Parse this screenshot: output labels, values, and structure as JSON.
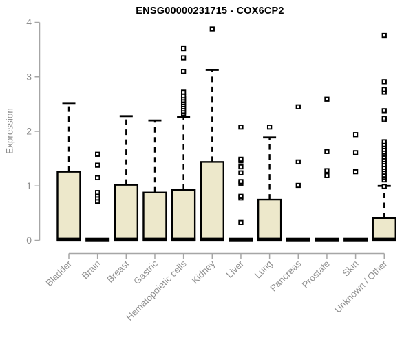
{
  "header": {
    "title": "ENSG00000231715 - COX6CP2"
  },
  "colors": {
    "background": "#FFFFFF",
    "title_text": "#000000",
    "axis_line": "#A6A6A6",
    "axis_text": "#8F8F8F",
    "box_fill": "#EDE8CB",
    "box_stroke": "#000000",
    "whisker": "#000000",
    "median": "#000000",
    "outlier_fill": "#FFFFFF",
    "outlier_stroke": "#000000"
  },
  "chart_data": {
    "type": "boxplot",
    "title": "ENSG00000231715 - COX6CP2",
    "xlabel": "",
    "ylabel": "Expression",
    "ylim": [
      0,
      4
    ],
    "yticks": [
      "0",
      "1",
      "2",
      "3",
      "4"
    ],
    "grid": false,
    "legend": "none",
    "categories": [
      "Bladder",
      "Brain",
      "Breast",
      "Gastric",
      "Hematopoietic cells",
      "Kidney",
      "Liver",
      "Lung",
      "Pancreas",
      "Prostate",
      "Skin",
      "Unknown / Other"
    ],
    "series": [
      {
        "name": "Bladder",
        "q1": 0,
        "median": 0.02,
        "q3": 1.26,
        "whisker_low": 0,
        "whisker_high": 2.52,
        "outliers": []
      },
      {
        "name": "Brain",
        "q1": 0,
        "median": 0.01,
        "q3": 0.02,
        "whisker_low": 0,
        "whisker_high": 0.02,
        "outliers": [
          0.72,
          0.78,
          0.83,
          0.88,
          1.15,
          1.38,
          1.58
        ]
      },
      {
        "name": "Breast",
        "q1": 0,
        "median": 0.02,
        "q3": 1.02,
        "whisker_low": 0,
        "whisker_high": 2.28,
        "outliers": []
      },
      {
        "name": "Gastric",
        "q1": 0,
        "median": 0.02,
        "q3": 0.88,
        "whisker_low": 0,
        "whisker_high": 2.2,
        "outliers": []
      },
      {
        "name": "Hematopoietic cells",
        "q1": 0,
        "median": 0.02,
        "q3": 0.93,
        "whisker_low": 0,
        "whisker_high": 2.26,
        "outliers": [
          2.33,
          2.37,
          2.41,
          2.45,
          2.49,
          2.53,
          2.57,
          2.61,
          2.65,
          2.72,
          3.1,
          3.35,
          3.52
        ]
      },
      {
        "name": "Kidney",
        "q1": 0,
        "median": 0.02,
        "q3": 1.44,
        "whisker_low": 0,
        "whisker_high": 3.13,
        "outliers": [
          3.88
        ]
      },
      {
        "name": "Liver",
        "q1": 0,
        "median": 0.01,
        "q3": 0.02,
        "whisker_low": 0,
        "whisker_high": 0.02,
        "outliers": [
          0.33,
          0.78,
          0.81,
          1.05,
          1.08,
          1.24,
          1.35,
          1.46,
          1.49,
          2.08
        ]
      },
      {
        "name": "Lung",
        "q1": 0,
        "median": 0.02,
        "q3": 0.75,
        "whisker_low": 0,
        "whisker_high": 1.89,
        "outliers": [
          2.08
        ]
      },
      {
        "name": "Pancreas",
        "q1": 0,
        "median": 0.01,
        "q3": 0.02,
        "whisker_low": 0,
        "whisker_high": 0.02,
        "outliers": [
          1.01,
          1.44,
          2.45
        ]
      },
      {
        "name": "Prostate",
        "q1": 0,
        "median": 0.01,
        "q3": 0.02,
        "whisker_low": 0,
        "whisker_high": 0.02,
        "outliers": [
          1.19,
          1.28,
          1.63,
          2.59
        ]
      },
      {
        "name": "Skin",
        "q1": 0,
        "median": 0.01,
        "q3": 0.02,
        "whisker_low": 0,
        "whisker_high": 0.02,
        "outliers": [
          1.26,
          1.61,
          1.94
        ]
      },
      {
        "name": "Unknown / Other",
        "q1": 0,
        "median": 0.02,
        "q3": 0.41,
        "whisker_low": 0,
        "whisker_high": 1.0,
        "outliers": [
          0.99,
          1.11,
          1.16,
          1.2,
          1.25,
          1.3,
          1.34,
          1.39,
          1.44,
          1.48,
          1.53,
          1.58,
          1.62,
          1.67,
          1.72,
          1.76,
          1.81,
          2.21,
          2.24,
          2.38,
          2.72,
          2.77,
          2.91,
          3.76
        ]
      }
    ]
  }
}
